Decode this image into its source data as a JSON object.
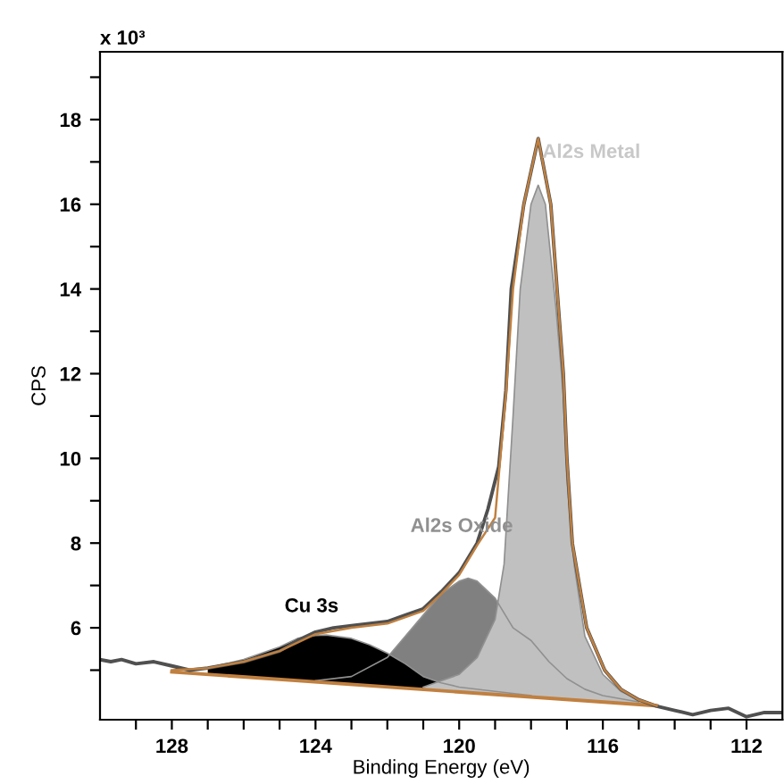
{
  "chart_data": {
    "type": "line",
    "xlabel": "Binding Energy (eV)",
    "ylabel": "CPS",
    "xlim": [
      130,
      111
    ],
    "ylim": [
      3.83,
      19.6
    ],
    "xticks": [
      {
        "value": 129,
        "label": null
      },
      128,
      {
        "value": 127,
        "label": null
      },
      {
        "value": 126,
        "label": null
      },
      {
        "value": 125,
        "label": null
      },
      124,
      {
        "value": 123,
        "label": null
      },
      {
        "value": 122,
        "label": null
      },
      {
        "value": 121,
        "label": null
      },
      120,
      {
        "value": 119,
        "label": null
      },
      {
        "value": 118,
        "label": null
      },
      {
        "value": 117,
        "label": null
      },
      116,
      {
        "value": 115,
        "label": null
      },
      {
        "value": 114,
        "label": null
      },
      {
        "value": 113,
        "label": null
      },
      112
    ],
    "yticks": [
      {
        "value": 5,
        "label": null
      },
      6,
      {
        "value": 7,
        "label": null
      },
      8,
      {
        "value": 9,
        "label": null
      },
      10,
      {
        "value": 11,
        "label": null
      },
      12,
      {
        "value": 13,
        "label": null
      },
      14,
      {
        "value": 15,
        "label": null
      },
      16,
      {
        "value": 17,
        "label": null
      },
      18,
      {
        "value": 19,
        "label": null
      }
    ],
    "grid": false,
    "legend": false,
    "series": [
      {
        "type": "area",
        "color": "#808080",
        "x": [
          124,
          123,
          122,
          121.5,
          121,
          120.5,
          120,
          119.75,
          119.5,
          119,
          118.5,
          118,
          117.5,
          117,
          116.5,
          116,
          115
        ],
        "values": [
          4.75,
          4.85,
          5.3,
          5.8,
          6.3,
          6.8,
          7.1,
          7.17,
          7.1,
          6.7,
          6.0,
          5.7,
          5.2,
          4.8,
          4.55,
          4.4,
          4.25
        ]
      },
      {
        "type": "area",
        "color": "#000000",
        "x": [
          127,
          126,
          125,
          124.5,
          124,
          123.7,
          123,
          122.5,
          122,
          121.5,
          121,
          120.5,
          120,
          119,
          118
        ],
        "values": [
          5.05,
          5.25,
          5.55,
          5.75,
          5.82,
          5.83,
          5.75,
          5.6,
          5.4,
          5.15,
          4.85,
          4.7,
          4.6,
          4.5,
          4.4
        ]
      },
      {
        "type": "area",
        "color": "#c0c0c0",
        "x": [
          121,
          120,
          119.5,
          119,
          118.75,
          118.5,
          118.3,
          118,
          117.8,
          117.6,
          117.3,
          117.1,
          117,
          116.8,
          116.5,
          116,
          115.5,
          115,
          114.5
        ],
        "values": [
          4.6,
          4.9,
          5.3,
          6.2,
          7.5,
          11,
          14,
          16,
          16.45,
          16,
          13.5,
          11.5,
          9.5,
          7.5,
          5.8,
          4.9,
          4.5,
          4.3,
          4.16
        ]
      },
      {
        "type": "line",
        "color": "#c08040",
        "x": [
          128,
          114.5
        ],
        "values": [
          4.96,
          4.16
        ]
      },
      {
        "color": "#c08040",
        "x": [
          128,
          127,
          126,
          125,
          124,
          123,
          122,
          121,
          120.5,
          120,
          119.5,
          119,
          118.7,
          118.5,
          118.2,
          117.8,
          117.45,
          117.1,
          117.0,
          116.85,
          116.45,
          115.95,
          115.5,
          115,
          114.5
        ],
        "values": [
          5.0,
          5.05,
          5.2,
          5.45,
          5.85,
          6.0,
          6.1,
          6.4,
          6.8,
          7.25,
          7.95,
          8.6,
          11.5,
          14,
          16,
          17.55,
          16,
          12,
          10,
          8,
          6,
          5,
          4.55,
          4.3,
          4.16
        ]
      },
      {
        "type": "line",
        "color": "#505050",
        "x": [
          130,
          129.7,
          129.4,
          129,
          128.5,
          128,
          127.5,
          127,
          126,
          125,
          124.5,
          124,
          123.5,
          123,
          122,
          121.5,
          121,
          120.5,
          120,
          119.5,
          119.2,
          118.9,
          118.7,
          118.55,
          118.2,
          117.8,
          117.45,
          117.1,
          117.0,
          116.85,
          116.45,
          115.95,
          115.5,
          115,
          114.5,
          114,
          113.5,
          113,
          112.5,
          112,
          111.5,
          111
        ],
        "values": [
          5.25,
          5.2,
          5.25,
          5.15,
          5.2,
          5.1,
          5.0,
          5.05,
          5.2,
          5.45,
          5.7,
          5.9,
          6.0,
          6.05,
          6.15,
          6.3,
          6.45,
          6.85,
          7.3,
          8.0,
          8.8,
          9.8,
          11.6,
          14,
          16,
          17.55,
          16,
          12,
          10,
          8,
          6,
          5,
          4.55,
          4.3,
          4.15,
          4.05,
          3.95,
          4.05,
          4.1,
          3.9,
          4.0,
          4.0
        ]
      }
    ],
    "annotations": [
      "x 10³",
      "Cu 3s",
      "Al2s Oxide",
      "Al2s Metal"
    ]
  }
}
